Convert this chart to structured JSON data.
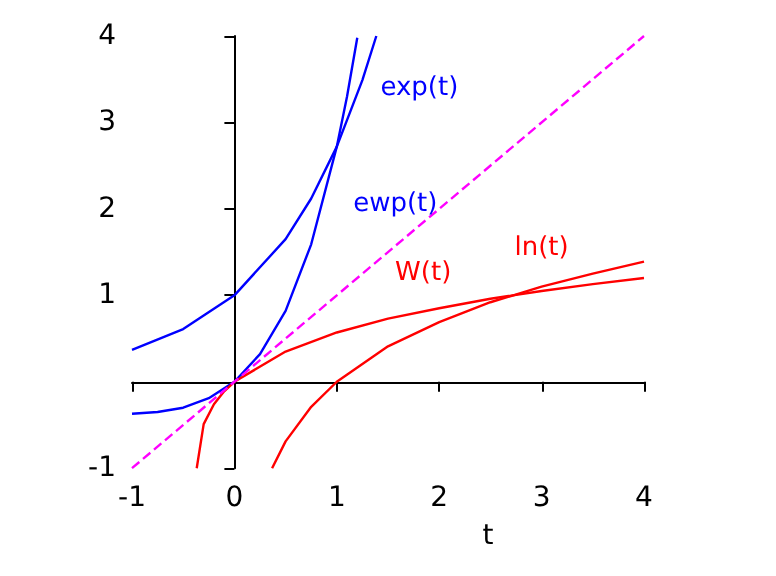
{
  "chart_data": {
    "type": "line",
    "xlabel": "t",
    "xlim": [
      -1,
      4
    ],
    "ylim": [
      -1,
      4
    ],
    "xticks": [
      -1,
      0,
      1,
      2,
      3,
      4
    ],
    "yticks": [
      -1,
      1,
      2,
      3,
      4
    ],
    "legend": false,
    "marker": "none",
    "series": [
      {
        "name": "exp(t)",
        "color": "#0000ff",
        "x": [
          -1,
          -0.5,
          0,
          0.5,
          0.75,
          1,
          1.25,
          1.386
        ],
        "values": [
          0.37,
          0.61,
          1,
          1.65,
          2.12,
          2.72,
          3.49,
          4
        ]
      },
      {
        "name": "ewp(t)",
        "color": "#0000ff",
        "x": [
          -1,
          -0.75,
          -0.5,
          -0.25,
          0,
          0.25,
          0.5,
          0.75,
          1,
          1.1,
          1.2
        ],
        "values": [
          -0.37,
          -0.35,
          -0.3,
          -0.19,
          0,
          0.32,
          0.82,
          1.59,
          2.72,
          3.3,
          3.98
        ]
      },
      {
        "name": "W(t)",
        "color": "#ff0000",
        "x": [
          -0.368,
          -0.3,
          -0.2,
          -0.1,
          0,
          0.5,
          1,
          1.5,
          2,
          2.5,
          3,
          3.5,
          4
        ],
        "values": [
          -1,
          -0.49,
          -0.26,
          -0.11,
          0,
          0.35,
          0.57,
          0.73,
          0.85,
          0.96,
          1.05,
          1.13,
          1.2
        ]
      },
      {
        "name": "ln(t)",
        "color": "#ff0000",
        "x": [
          0.368,
          0.5,
          0.75,
          1,
          1.5,
          2,
          2.5,
          3,
          3.5,
          4
        ],
        "values": [
          -1,
          -0.69,
          -0.29,
          0,
          0.41,
          0.69,
          0.92,
          1.1,
          1.25,
          1.39
        ]
      },
      {
        "color": "#ff00ff",
        "line_style": "dashed",
        "x": [
          -1,
          4
        ],
        "values": [
          -1,
          4
        ]
      }
    ]
  }
}
